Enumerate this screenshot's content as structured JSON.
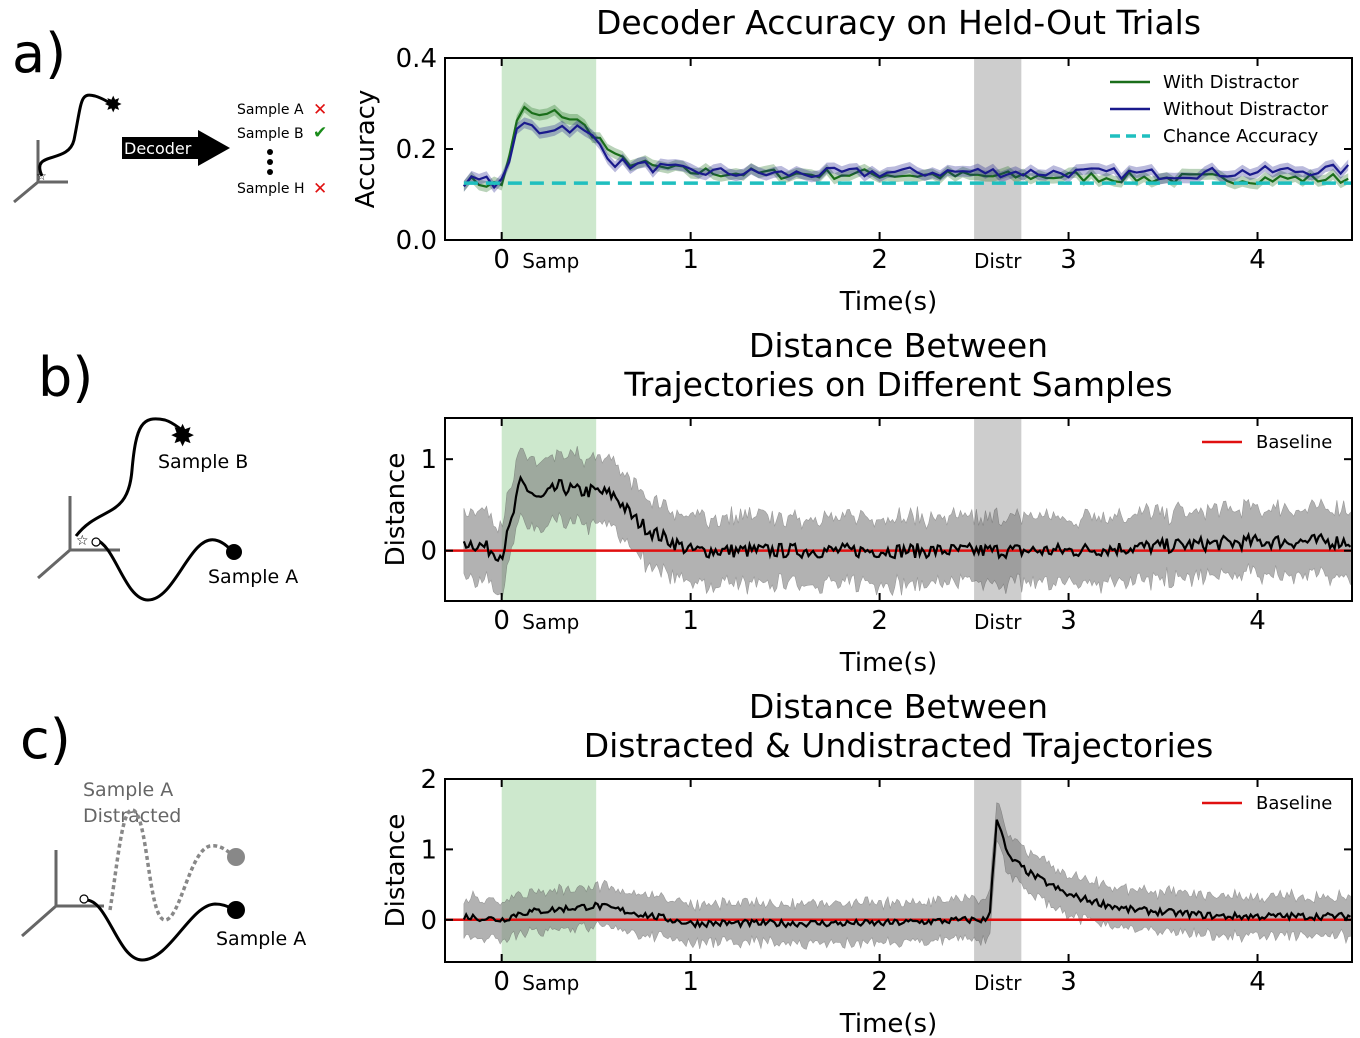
{
  "panels": {
    "a": {
      "letter": "a)",
      "decoder_label": "Decoder",
      "samples": [
        "Sample A",
        "Sample B",
        "Sample H"
      ]
    },
    "b": {
      "letter": "b)",
      "sample_b": "Sample B",
      "sample_a": "Sample A"
    },
    "c": {
      "letter": "c)",
      "distracted_line1": "Sample A",
      "distracted_line2": "Distracted",
      "sample_a": "Sample A"
    }
  },
  "colors": {
    "with_distractor": "#1a6e1a",
    "without_distractor": "#1a1a8c",
    "chance": "#1fbfbf",
    "baseline": "#e01010",
    "sample_window": "#c8e6c8",
    "distractor_window": "#c8c8c8",
    "distance_line": "#000000",
    "distance_band": "#808080",
    "cross": "#e01010",
    "check": "#1a8c1a"
  },
  "chart_data": [
    {
      "type": "line",
      "title": "Decoder Accuracy on Held-Out Trials",
      "xlabel": "Time(s)",
      "ylabel": "Accuracy",
      "xlim": [
        -0.3,
        4.5
      ],
      "ylim": [
        0.0,
        0.4
      ],
      "xticks": [
        0,
        1,
        2,
        3,
        4
      ],
      "yticks": [
        "0.0",
        "0.2",
        "0.4"
      ],
      "tick_labels_x": [
        "0",
        "1",
        "2",
        "3",
        "4"
      ],
      "windows": [
        {
          "label": "Samp",
          "start": 0.0,
          "end": 0.5
        },
        {
          "label": "Distr",
          "start": 2.5,
          "end": 2.75
        }
      ],
      "legend_placement": "top-right",
      "series": [
        {
          "name": "With Distractor",
          "keypoints": [
            [
              -0.2,
              0.13
            ],
            [
              -0.1,
              0.125
            ],
            [
              0.0,
              0.12
            ],
            [
              0.1,
              0.29
            ],
            [
              0.2,
              0.27
            ],
            [
              0.3,
              0.28
            ],
            [
              0.4,
              0.26
            ],
            [
              0.5,
              0.23
            ],
            [
              0.6,
              0.18
            ],
            [
              0.8,
              0.16
            ],
            [
              1.0,
              0.15
            ],
            [
              1.5,
              0.145
            ],
            [
              2.0,
              0.145
            ],
            [
              2.5,
              0.14
            ],
            [
              3.0,
              0.14
            ],
            [
              3.5,
              0.135
            ],
            [
              4.0,
              0.135
            ],
            [
              4.5,
              0.135
            ]
          ],
          "band": 0.012
        },
        {
          "name": "Without Distractor",
          "keypoints": [
            [
              -0.2,
              0.13
            ],
            [
              -0.1,
              0.13
            ],
            [
              0.0,
              0.125
            ],
            [
              0.1,
              0.26
            ],
            [
              0.2,
              0.24
            ],
            [
              0.3,
              0.25
            ],
            [
              0.4,
              0.245
            ],
            [
              0.5,
              0.22
            ],
            [
              0.6,
              0.17
            ],
            [
              0.8,
              0.16
            ],
            [
              1.0,
              0.15
            ],
            [
              1.5,
              0.145
            ],
            [
              2.0,
              0.148
            ],
            [
              2.5,
              0.15
            ],
            [
              3.0,
              0.148
            ],
            [
              3.5,
              0.145
            ],
            [
              4.0,
              0.15
            ],
            [
              4.5,
              0.155
            ]
          ],
          "band": 0.012
        },
        {
          "name": "Chance Accuracy",
          "value": 0.125,
          "style": "dashed"
        }
      ]
    },
    {
      "type": "line",
      "title": "Distance Between\nTrajectories on Different Samples",
      "title_lines": [
        "Distance Between",
        "Trajectories on Different Samples"
      ],
      "xlabel": "Time(s)",
      "ylabel": "Distance",
      "xlim": [
        -0.3,
        4.5
      ],
      "ylim": [
        -0.55,
        1.45
      ],
      "xticks": [
        0,
        1,
        2,
        3,
        4
      ],
      "yticks": [
        "0",
        "1"
      ],
      "tick_labels_x": [
        "0",
        "1",
        "2",
        "3",
        "4"
      ],
      "windows": [
        {
          "label": "Samp",
          "start": 0.0,
          "end": 0.5
        },
        {
          "label": "Distr",
          "start": 2.5,
          "end": 2.75
        }
      ],
      "legend_placement": "top-right",
      "baseline": {
        "name": "Baseline",
        "value": 0.0
      },
      "series": [
        {
          "keypoints": [
            [
              -0.2,
              0.1
            ],
            [
              -0.1,
              0.05
            ],
            [
              0.0,
              -0.05
            ],
            [
              0.05,
              0.3
            ],
            [
              0.1,
              0.75
            ],
            [
              0.2,
              0.55
            ],
            [
              0.3,
              0.7
            ],
            [
              0.4,
              0.65
            ],
            [
              0.5,
              0.65
            ],
            [
              0.6,
              0.6
            ],
            [
              0.7,
              0.35
            ],
            [
              0.8,
              0.2
            ],
            [
              0.9,
              0.1
            ],
            [
              1.0,
              0.0
            ],
            [
              1.5,
              0.0
            ],
            [
              2.0,
              0.0
            ],
            [
              2.5,
              0.0
            ],
            [
              3.0,
              0.0
            ],
            [
              3.5,
              0.05
            ],
            [
              4.0,
              0.1
            ],
            [
              4.5,
              0.1
            ]
          ],
          "band": 0.3,
          "noise": 0.08
        }
      ]
    },
    {
      "type": "line",
      "title": "Distance Between\nDistracted & Undistracted Trajectories",
      "title_lines": [
        "Distance Between",
        "Distracted & Undistracted Trajectories"
      ],
      "xlabel": "Time(s)",
      "ylabel": "Distance",
      "xlim": [
        -0.3,
        4.5
      ],
      "ylim": [
        -0.6,
        2.0
      ],
      "xticks": [
        0,
        1,
        2,
        3,
        4
      ],
      "yticks": [
        "0",
        "1",
        "2"
      ],
      "tick_labels_x": [
        "0",
        "1",
        "2",
        "3",
        "4"
      ],
      "windows": [
        {
          "label": "Samp",
          "start": 0.0,
          "end": 0.5
        },
        {
          "label": "Distr",
          "start": 2.5,
          "end": 2.75
        }
      ],
      "legend_placement": "top-right",
      "baseline": {
        "name": "Baseline",
        "value": 0.0
      },
      "series": [
        {
          "keypoints": [
            [
              -0.2,
              0.05
            ],
            [
              0.0,
              0.0
            ],
            [
              0.1,
              0.1
            ],
            [
              0.3,
              0.15
            ],
            [
              0.5,
              0.2
            ],
            [
              0.7,
              0.1
            ],
            [
              1.0,
              -0.05
            ],
            [
              1.5,
              -0.05
            ],
            [
              2.0,
              -0.05
            ],
            [
              2.5,
              0.0
            ],
            [
              2.58,
              0.0
            ],
            [
              2.62,
              1.45
            ],
            [
              2.68,
              0.9
            ],
            [
              2.8,
              0.65
            ],
            [
              3.0,
              0.35
            ],
            [
              3.3,
              0.15
            ],
            [
              3.8,
              0.05
            ],
            [
              4.5,
              0.05
            ]
          ],
          "band": 0.22,
          "noise": 0.05
        }
      ]
    }
  ]
}
